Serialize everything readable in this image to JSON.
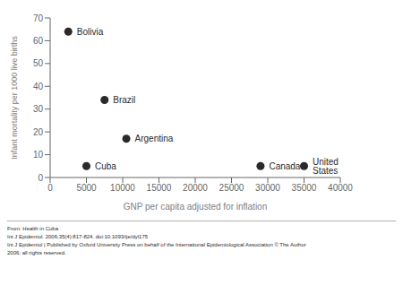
{
  "chart_data": {
    "type": "scatter",
    "categories": [
      "Bolivia",
      "Brazil",
      "Argentina",
      "Cuba",
      "Canada",
      "United States"
    ],
    "x": [
      2500,
      7500,
      10500,
      5000,
      29000,
      35000
    ],
    "values": [
      64,
      34,
      17,
      5,
      5,
      5
    ],
    "color": "#2a2a2a",
    "xlabel": "GNP per capita adjusted for inflation",
    "ylabel": "Infant mortality per 1000  live births",
    "xlim": [
      0,
      40000
    ],
    "ylim": [
      0,
      70
    ],
    "xticks": [
      0,
      5000,
      10000,
      15000,
      20000,
      25000,
      30000,
      35000,
      40000
    ],
    "yticks": [
      0,
      10,
      20,
      30,
      40,
      50,
      60,
      70
    ],
    "grid": false,
    "annotations": [
      "From: Health in Cuba",
      "Int J Epidemiol. 2006;35(4):817-824. doi:10.1093/ije/dyl175",
      "Int J Epidemiol | Published by Oxford University Press on behalf of the International Epidemiological Association © The Author",
      "2006; all rights reserved."
    ]
  }
}
